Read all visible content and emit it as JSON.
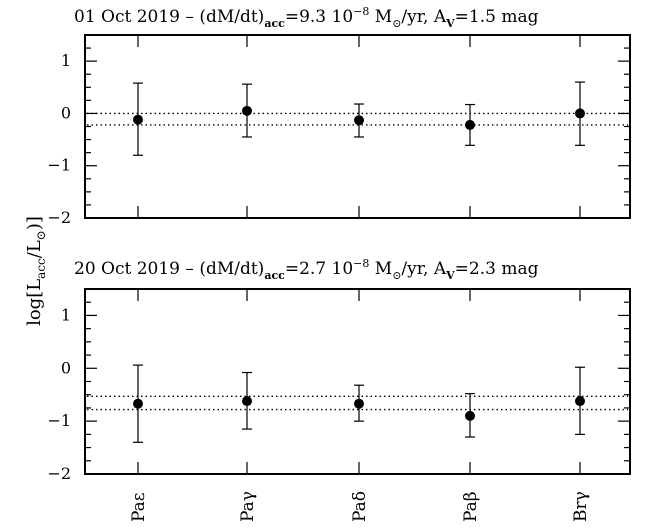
{
  "y_axis_label": "log[L_acc/L_⊙]",
  "y_ticks": [
    "1",
    "0",
    "−1",
    "−2"
  ],
  "categories": [
    "Paε",
    "Paγ",
    "Paδ",
    "Paβ",
    "Brγ"
  ],
  "chart_data": [
    {
      "type": "scatter",
      "title_parts": {
        "date": "01 Oct 2019",
        "rate": "(dM/dt)",
        "rate_sub": "acc",
        "rate_value": "=9.3 10",
        "exp": "−8",
        "unit": " M",
        "unit_sub": "⊙",
        "unit_tail": "/yr, A",
        "av_sub": "V",
        "av_value": "=1.5 mag"
      },
      "categories": [
        "Paε",
        "Paγ",
        "Paδ",
        "Paβ",
        "Brγ"
      ],
      "values": [
        -0.12,
        0.05,
        -0.13,
        -0.22,
        0.0
      ],
      "err_low": [
        -0.8,
        -0.45,
        -0.45,
        -0.61,
        -0.61
      ],
      "err_high": [
        0.58,
        0.56,
        0.18,
        0.17,
        0.6
      ],
      "reference_lines": [
        0.0,
        -0.22
      ],
      "ylim": [
        -2,
        1.5
      ],
      "y_ticks": [
        1,
        0,
        -1,
        -2
      ]
    },
    {
      "type": "scatter",
      "title_parts": {
        "date": "20 Oct 2019",
        "rate": "(dM/dt)",
        "rate_sub": "acc",
        "rate_value": "=2.7 10",
        "exp": "−8",
        "unit": " M",
        "unit_sub": "⊙",
        "unit_tail": "/yr, A",
        "av_sub": "V",
        "av_value": "=2.3 mag"
      },
      "categories": [
        "Paε",
        "Paγ",
        "Paδ",
        "Paβ",
        "Brγ"
      ],
      "values": [
        -0.67,
        -0.62,
        -0.67,
        -0.9,
        -0.62
      ],
      "err_low": [
        -1.4,
        -1.15,
        -1.0,
        -1.3,
        -1.25
      ],
      "err_high": [
        0.06,
        -0.08,
        -0.32,
        -0.48,
        0.02
      ],
      "reference_lines": [
        -0.53,
        -0.78
      ],
      "ylim": [
        -2,
        1.5
      ],
      "y_ticks": [
        1,
        0,
        -1,
        -2
      ]
    }
  ]
}
